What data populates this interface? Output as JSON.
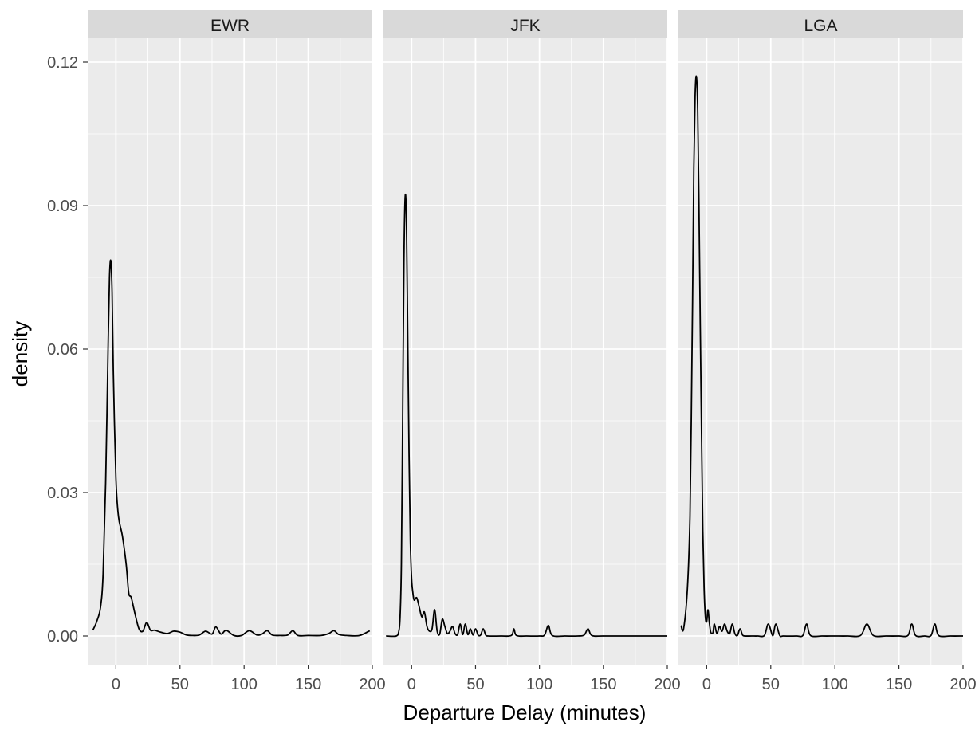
{
  "chart_data": {
    "type": "area",
    "title": "",
    "xlabel": "Departure Delay (minutes)",
    "ylabel": "density",
    "xlim": [
      -22,
      200
    ],
    "ylim": [
      -0.006,
      0.125
    ],
    "x_ticks": [
      0,
      50,
      100,
      150,
      200
    ],
    "x_tick_labels": [
      "0",
      "50",
      "100",
      "150",
      "200"
    ],
    "y_ticks": [
      0,
      0.03,
      0.06,
      0.09,
      0.12
    ],
    "y_tick_labels": [
      "0.00",
      "0.03",
      "0.06",
      "0.09",
      "0.12"
    ],
    "grid": true,
    "facets": [
      {
        "name": "EWR",
        "x": [
          -18,
          -15,
          -12,
          -10,
          -8,
          -6,
          -5,
          -4,
          -3,
          -2,
          0,
          2,
          5,
          8,
          10,
          12,
          15,
          18,
          21,
          24,
          27,
          30,
          35,
          40,
          45,
          50,
          55,
          60,
          65,
          70,
          75,
          78,
          82,
          86,
          92,
          98,
          104,
          110,
          114,
          118,
          122,
          128,
          134,
          138,
          142,
          150,
          160,
          166,
          170,
          174,
          180,
          190,
          198
        ],
        "y": [
          0.0012,
          0.003,
          0.006,
          0.013,
          0.032,
          0.062,
          0.075,
          0.0785,
          0.072,
          0.055,
          0.033,
          0.025,
          0.021,
          0.015,
          0.009,
          0.008,
          0.0045,
          0.0015,
          0.001,
          0.0028,
          0.0012,
          0.0012,
          0.0008,
          0.0005,
          0.001,
          0.0008,
          0.0002,
          0.0001,
          0.0002,
          0.001,
          0.0004,
          0.0019,
          0.0004,
          0.0012,
          0.0001,
          0.0001,
          0.0011,
          0.0002,
          0.0004,
          0.0011,
          0.0002,
          0.0001,
          0.0002,
          0.0011,
          0.0001,
          0.0001,
          0.0001,
          0.0005,
          0.0011,
          0.0003,
          0.0001,
          0.0001,
          0.0011
        ]
      },
      {
        "name": "JFK",
        "x": [
          -20,
          -12,
          -10,
          -9,
          -8,
          -7,
          -6,
          -5,
          -4,
          -3,
          -2,
          -1,
          0,
          1,
          2,
          4,
          6,
          8,
          10,
          12,
          14,
          16,
          18,
          20,
          22,
          24,
          26,
          28,
          30,
          32,
          34,
          36,
          38,
          40,
          42,
          44,
          46,
          48,
          50,
          52,
          54,
          56,
          58,
          60,
          70,
          78,
          80,
          82,
          90,
          100,
          104,
          107,
          110,
          120,
          130,
          135,
          138,
          141,
          150,
          170,
          200
        ],
        "y": [
          0,
          0,
          0.001,
          0.004,
          0.015,
          0.045,
          0.078,
          0.092,
          0.086,
          0.062,
          0.038,
          0.02,
          0.012,
          0.009,
          0.0075,
          0.008,
          0.006,
          0.004,
          0.005,
          0.002,
          0.001,
          0.0015,
          0.0055,
          0.001,
          0.0004,
          0.0035,
          0.002,
          0.0005,
          0.001,
          0.002,
          0.0005,
          0.0003,
          0.0025,
          0.0003,
          0.0025,
          0.0003,
          0.0015,
          0.0002,
          0.0015,
          0.0002,
          0.0002,
          0.0015,
          0.0002,
          0,
          0,
          0.0001,
          0.0015,
          0.0001,
          0,
          0,
          0.0002,
          0.0022,
          0.0001,
          0,
          0,
          0.0002,
          0.0015,
          0.0001,
          0,
          0,
          0
        ]
      },
      {
        "name": "LGA",
        "x": [
          -20,
          -18,
          -15,
          -13,
          -12,
          -11,
          -10,
          -9,
          -8,
          -7,
          -6,
          -5,
          -4,
          -3,
          -2,
          -1,
          0,
          1,
          2,
          3,
          4,
          5,
          6,
          8,
          10,
          12,
          14,
          16,
          18,
          20,
          22,
          24,
          26,
          28,
          30,
          35,
          40,
          45,
          48,
          51,
          52,
          54,
          57,
          60,
          70,
          75,
          78,
          81,
          90,
          100,
          110,
          120,
          125,
          130,
          140,
          150,
          157,
          160,
          163,
          170,
          175,
          178,
          181,
          190,
          200
        ],
        "y": [
          0.0022,
          0.0015,
          0.01,
          0.025,
          0.045,
          0.07,
          0.098,
          0.113,
          0.117,
          0.11,
          0.09,
          0.065,
          0.042,
          0.022,
          0.01,
          0.004,
          0.003,
          0.0055,
          0.003,
          0.001,
          0.0005,
          0.0008,
          0.0025,
          0.0005,
          0.002,
          0.001,
          0.0025,
          0.001,
          0.0005,
          0.0025,
          0.0005,
          0.0001,
          0.0015,
          0.0002,
          0,
          0,
          0,
          0.0001,
          0.0025,
          0.0003,
          0.0003,
          0.0025,
          0.0001,
          0,
          0,
          0.0001,
          0.0025,
          0.0001,
          0,
          0,
          0,
          0.0001,
          0.0025,
          0.0001,
          0,
          0,
          0.0001,
          0.0025,
          0.0001,
          0,
          0.0001,
          0.0025,
          0.0001,
          0,
          0
        ]
      }
    ]
  },
  "colors": {
    "panel_background": "#ebebeb",
    "strip_background": "#d9d9d9",
    "grid_line": "#ffffff",
    "density_line": "#000000",
    "tick_mark": "#333333"
  }
}
